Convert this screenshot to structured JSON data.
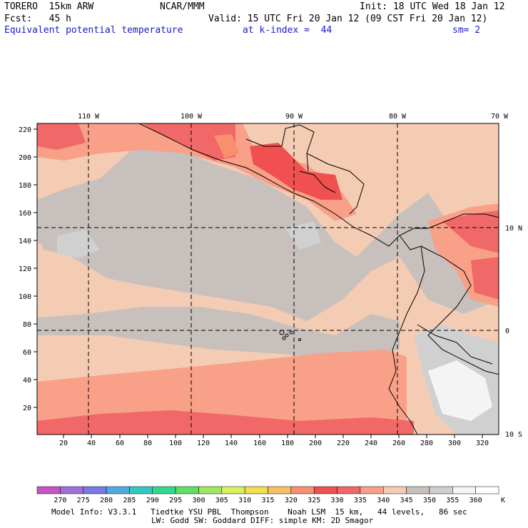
{
  "header": {
    "model": "TORERO  15km ARW",
    "center": "NCAR/MMM",
    "init": "Init: 18 UTC Wed 18 Jan 12",
    "fcst": "Fcst:   45 h",
    "valid": "Valid: 15 UTC Fri 20 Jan 12 (09 CST Fri 20 Jan 12)",
    "field": "Equivalent potential temperature",
    "level": "at k-index =  44",
    "smooth": "sm= 2"
  },
  "axes": {
    "top_lon": [
      "110 W",
      "100 W",
      "90 W",
      "80 W",
      "70 W"
    ],
    "right_lat": [
      "10 N",
      "0",
      "10 S"
    ],
    "left_ticks": [
      "220",
      "200",
      "180",
      "160",
      "140",
      "120",
      "100",
      "80",
      "60",
      "40",
      "20"
    ],
    "bottom_ticks": [
      "20",
      "40",
      "60",
      "80",
      "100",
      "120",
      "140",
      "160",
      "180",
      "200",
      "220",
      "240",
      "260",
      "280",
      "300",
      "320"
    ]
  },
  "colorbar": {
    "labels": [
      "270",
      "275",
      "280",
      "285",
      "290",
      "295",
      "300",
      "305",
      "310",
      "315",
      "320",
      "325",
      "330",
      "335",
      "340",
      "345",
      "350",
      "355",
      "360"
    ],
    "unit": "K",
    "colors": [
      "#c852c8",
      "#a070d8",
      "#7878e8",
      "#50a8e0",
      "#30c8c0",
      "#30d890",
      "#60e060",
      "#a0e860",
      "#d8f060",
      "#f0e050",
      "#f8c060",
      "#f89070",
      "#f05050",
      "#f06868",
      "#f8a088",
      "#f4ccb4",
      "#c8c0bc",
      "#d0d0d0",
      "#f4f4f4",
      "#ffffff"
    ]
  },
  "footer": {
    "line1": "Model Info: V3.3.1   Tiedtke YSU PBL  Thompson    Noah LSM  15 km,   44 levels,   86 sec",
    "line2": "LW: Godd SW: Goddard DIFF: simple KM: 2D Smagor"
  }
}
